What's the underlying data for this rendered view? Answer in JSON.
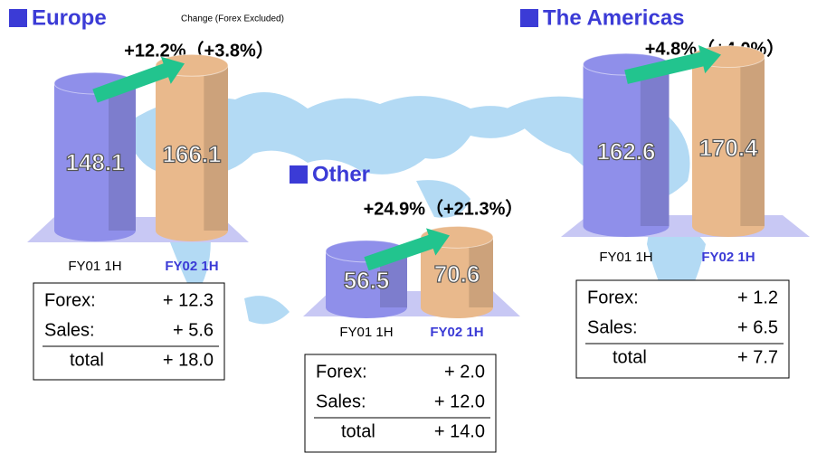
{
  "note": "Change (Forex Excluded)",
  "chart_data": [
    {
      "type": "bar",
      "title": "Europe",
      "annotation": "+12.2%（+3.8%）",
      "categories": [
        "FY01 1H",
        "FY02 1H"
      ],
      "values": [
        148.1,
        166.1
      ],
      "colors": [
        "#8f8fea",
        "#e9b98c"
      ],
      "breakdown": [
        [
          "Forex:",
          "+ 12.3"
        ],
        [
          "Sales:",
          "+ 5.6"
        ],
        [
          "total",
          "+ 18.0"
        ]
      ]
    },
    {
      "type": "bar",
      "title": "The Americas",
      "annotation": "+4.8%（+4.0%）",
      "categories": [
        "FY01 1H",
        "FY02 1H"
      ],
      "values": [
        162.6,
        170.4
      ],
      "colors": [
        "#8f8fea",
        "#e9b98c"
      ],
      "breakdown": [
        [
          "Forex:",
          "+ 1.2"
        ],
        [
          "Sales:",
          "+ 6.5"
        ],
        [
          "total",
          "+ 7.7"
        ]
      ]
    },
    {
      "type": "bar",
      "title": "Other",
      "annotation": "+24.9%（+21.3%）",
      "categories": [
        "FY01 1H",
        "FY02 1H"
      ],
      "values": [
        56.5,
        70.6
      ],
      "colors": [
        "#8f8fea",
        "#e9b98c"
      ],
      "breakdown": [
        [
          "Forex:",
          "+ 2.0"
        ],
        [
          "Sales:",
          "+ 12.0"
        ],
        [
          "total",
          "+ 14.0"
        ]
      ]
    }
  ]
}
